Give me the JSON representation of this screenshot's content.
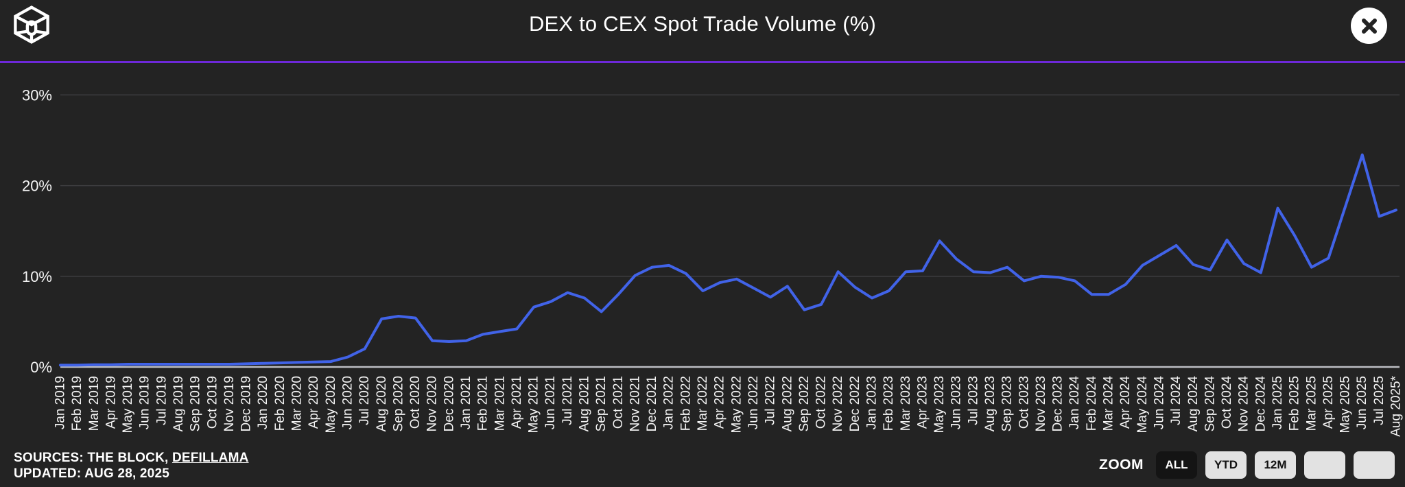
{
  "theme": {
    "background": "#232323",
    "accent_purple": "#6d28d9",
    "line_blue": "#4163e8"
  },
  "header": {
    "title": "DEX to CEX Spot Trade Volume (%)"
  },
  "chart_data": {
    "type": "line",
    "title": "DEX to CEX Spot Trade Volume (%)",
    "xlabel": "",
    "ylabel": "",
    "ylim": [
      0,
      33.4
    ],
    "grid": "horizontal",
    "legend": "none",
    "line_color": "#4163e8",
    "grid_color": "#3d3d40",
    "axis_color": "#bcbec3",
    "label_color": "#f4f4f4",
    "y_ticks": [
      {
        "label": "0%",
        "value": 0
      },
      {
        "label": "10%",
        "value": 10
      },
      {
        "label": "20%",
        "value": 20
      },
      {
        "label": "30%",
        "value": 30
      }
    ],
    "categories": [
      "Jan 2019",
      "Feb 2019",
      "Mar 2019",
      "Apr 2019",
      "May 2019",
      "Jun 2019",
      "Jul 2019",
      "Aug 2019",
      "Sep 2019",
      "Oct 2019",
      "Nov 2019",
      "Dec 2019",
      "Jan 2020",
      "Feb 2020",
      "Mar 2020",
      "Apr 2020",
      "May 2020",
      "Jun 2020",
      "Jul 2020",
      "Aug 2020",
      "Sep 2020",
      "Oct 2020",
      "Nov 2020",
      "Dec 2020",
      "Jan 2021",
      "Feb 2021",
      "Mar 2021",
      "Apr 2021",
      "May 2021",
      "Jun 2021",
      "Jul 2021",
      "Aug 2021",
      "Sep 2021",
      "Oct 2021",
      "Nov 2021",
      "Dec 2021",
      "Jan 2022",
      "Feb 2022",
      "Mar 2022",
      "Apr 2022",
      "May 2022",
      "Jun 2022",
      "Jul 2022",
      "Aug 2022",
      "Sep 2022",
      "Oct 2022",
      "Nov 2022",
      "Dec 2022",
      "Jan 2023",
      "Feb 2023",
      "Mar 2023",
      "Apr 2023",
      "May 2023",
      "Jun 2023",
      "Jul 2023",
      "Aug 2023",
      "Sep 2023",
      "Oct 2023",
      "Nov 2023",
      "Dec 2023",
      "Jan 2024",
      "Feb 2024",
      "Mar 2024",
      "Apr 2024",
      "May 2024",
      "Jun 2024",
      "Jul 2024",
      "Aug 2024",
      "Sep 2024",
      "Oct 2024",
      "Nov 2024",
      "Dec 2024",
      "Jan 2025",
      "Feb 2025",
      "Mar 2025",
      "Apr 2025",
      "May 2025",
      "Jun 2025",
      "Jul 2025",
      "Aug 2025*"
    ],
    "values": [
      0.2,
      0.2,
      0.25,
      0.25,
      0.3,
      0.3,
      0.3,
      0.3,
      0.3,
      0.3,
      0.3,
      0.35,
      0.4,
      0.45,
      0.5,
      0.55,
      0.6,
      1.1,
      2.0,
      5.3,
      5.6,
      5.4,
      2.9,
      2.8,
      2.9,
      3.6,
      3.9,
      4.2,
      6.6,
      7.2,
      8.2,
      7.6,
      6.1,
      8.0,
      10.1,
      11.0,
      11.2,
      10.3,
      8.4,
      9.3,
      9.7,
      8.7,
      7.7,
      8.9,
      6.3,
      6.9,
      10.5,
      8.8,
      7.6,
      8.4,
      10.5,
      10.6,
      13.9,
      11.9,
      10.5,
      10.4,
      11.0,
      9.5,
      10.0,
      9.9,
      9.5,
      8.0,
      8.0,
      9.1,
      11.2,
      12.3,
      13.4,
      11.3,
      10.7,
      14.0,
      11.4,
      10.4,
      17.5,
      14.5,
      11.0,
      12.0,
      17.7,
      23.4,
      16.6,
      17.3
    ]
  },
  "footer": {
    "sources_prefix": "SOURCES: THE BLOCK, ",
    "sources_link": "DEFILLAMA",
    "updated": "UPDATED: AUG 28, 2025",
    "zoom": {
      "label": "ZOOM",
      "buttons": [
        {
          "label": "ALL",
          "active": true
        },
        {
          "label": "YTD",
          "active": false
        },
        {
          "label": "12M",
          "active": false
        },
        {
          "label": "",
          "active": false
        },
        {
          "label": "",
          "active": false
        }
      ]
    }
  }
}
